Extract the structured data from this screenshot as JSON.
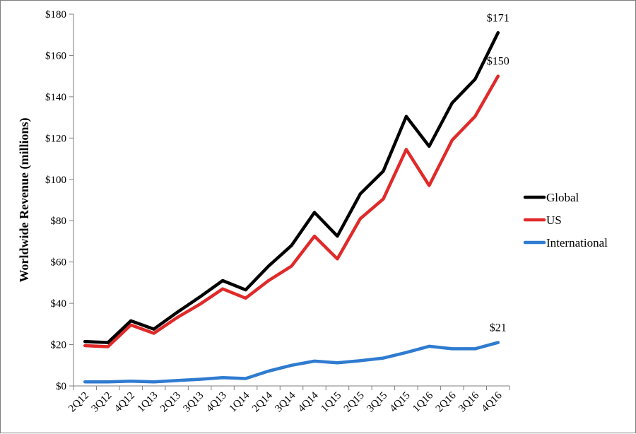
{
  "chart_data": {
    "type": "line",
    "title": "",
    "xlabel": "",
    "ylabel": "Worldwide Revenue (millions)",
    "ylim": [
      0,
      180
    ],
    "yticks": [
      "$0",
      "$20",
      "$40",
      "$60",
      "$80",
      "$100",
      "$120",
      "$140",
      "$160",
      "$180"
    ],
    "ytick_values": [
      0,
      20,
      40,
      60,
      80,
      100,
      120,
      140,
      160,
      180
    ],
    "grid": false,
    "legend_position": "right",
    "categories": [
      "2Q12",
      "3Q12",
      "4Q12",
      "1Q13",
      "2Q13",
      "3Q13",
      "4Q13",
      "1Q14",
      "2Q14",
      "3Q14",
      "4Q14",
      "1Q15",
      "2Q15",
      "3Q15",
      "4Q15",
      "1Q16",
      "2Q16",
      "3Q16",
      "4Q16"
    ],
    "series": [
      {
        "name": "Global",
        "color": "#000000",
        "values": [
          21.5,
          21,
          31.5,
          27.5,
          35.5,
          43,
          51,
          46.5,
          58,
          68,
          84,
          72.5,
          93,
          104,
          130.5,
          116,
          137,
          148.5,
          171
        ],
        "end_label": "$171"
      },
      {
        "name": "US",
        "color": "#e02a2a",
        "values": [
          19.5,
          19,
          29.5,
          25.5,
          33,
          39.5,
          47,
          42.5,
          51,
          58,
          72.5,
          61.5,
          81,
          90.5,
          114.5,
          97,
          119,
          130.5,
          150
        ],
        "end_label": "$150"
      },
      {
        "name": "International",
        "color": "#2f7bd0",
        "values": [
          2,
          2,
          2.3,
          2,
          2.6,
          3.2,
          4,
          3.6,
          7.2,
          10,
          12,
          11.2,
          12.2,
          13.5,
          16.2,
          19.2,
          18,
          18,
          21
        ],
        "end_label": "$21"
      }
    ]
  }
}
